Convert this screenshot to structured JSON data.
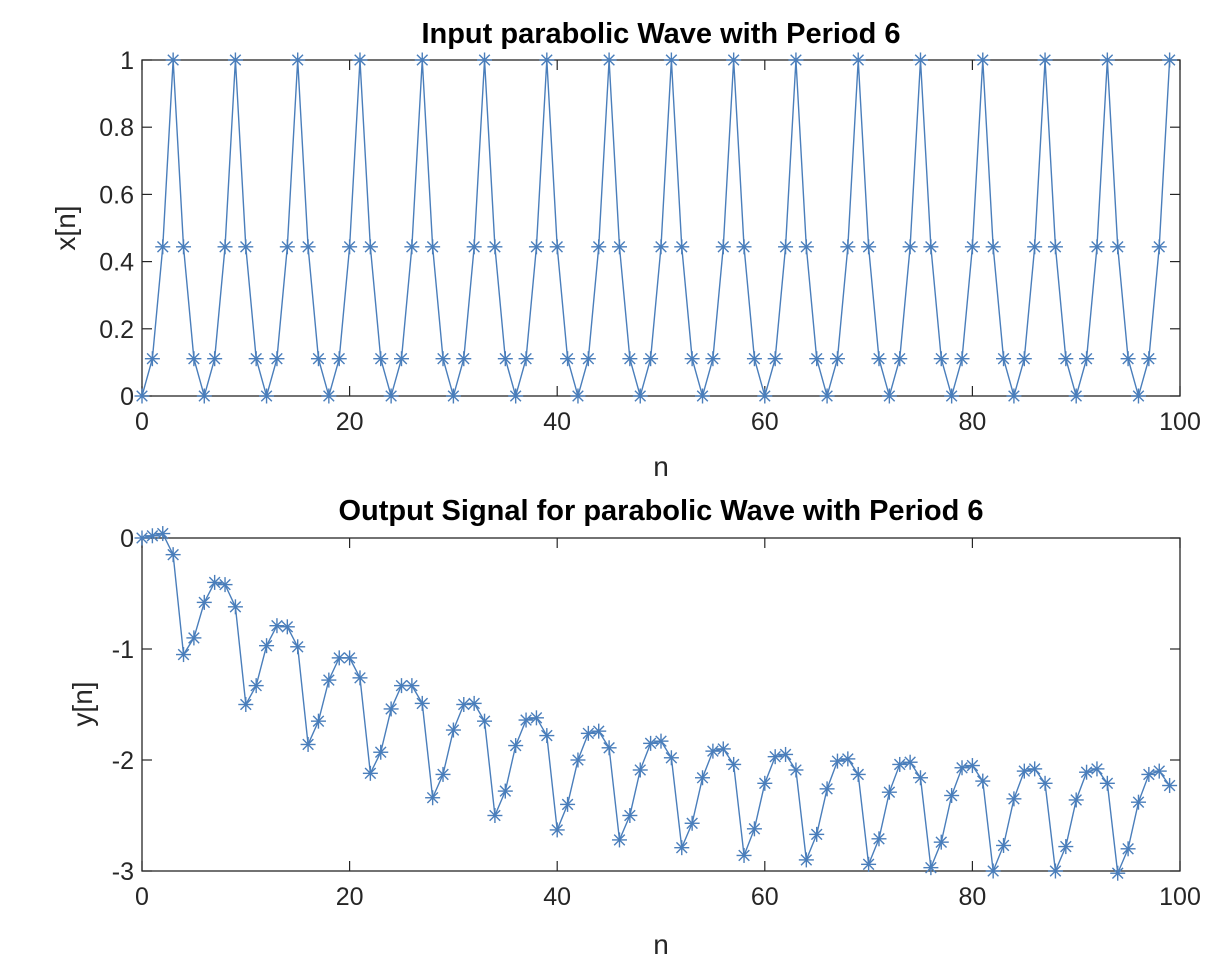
{
  "chart_data": [
    {
      "type": "line",
      "title": "Input parabolic Wave with Period 6",
      "xlabel": "n",
      "ylabel": "x[n]",
      "xlim": [
        0,
        100
      ],
      "ylim": [
        0,
        1
      ],
      "xticks": [
        0,
        20,
        40,
        60,
        80,
        100
      ],
      "xtick_labels": [
        "0",
        "20",
        "40",
        "60",
        "80",
        "100"
      ],
      "yticks": [
        0,
        0.2,
        0.4,
        0.6,
        0.8,
        1
      ],
      "ytick_labels": [
        "0",
        "0.2",
        "0.4",
        "0.6",
        "0.8",
        "1"
      ],
      "grid": false,
      "marker": "asterisk",
      "color": "#4a7ebb",
      "series": [
        {
          "x": [
            0,
            1,
            2,
            3,
            4,
            5,
            6,
            7,
            8,
            9,
            10,
            11,
            12,
            13,
            14,
            15,
            16,
            17,
            18,
            19,
            20,
            21,
            22,
            23,
            24,
            25,
            26,
            27,
            28,
            29,
            30,
            31,
            32,
            33,
            34,
            35,
            36,
            37,
            38,
            39,
            40,
            41,
            42,
            43,
            44,
            45,
            46,
            47,
            48,
            49,
            50,
            51,
            52,
            53,
            54,
            55,
            56,
            57,
            58,
            59,
            60,
            61,
            62,
            63,
            64,
            65,
            66,
            67,
            68,
            69,
            70,
            71,
            72,
            73,
            74,
            75,
            76,
            77,
            78,
            79,
            80,
            81,
            82,
            83,
            84,
            85,
            86,
            87,
            88,
            89,
            90,
            91,
            92,
            93,
            94,
            95,
            96,
            97,
            98,
            99
          ],
          "y": [
            0,
            0.111,
            0.444,
            1,
            0.444,
            0.111,
            0,
            0.111,
            0.444,
            1,
            0.444,
            0.111,
            0,
            0.111,
            0.444,
            1,
            0.444,
            0.111,
            0,
            0.111,
            0.444,
            1,
            0.444,
            0.111,
            0,
            0.111,
            0.444,
            1,
            0.444,
            0.111,
            0,
            0.111,
            0.444,
            1,
            0.444,
            0.111,
            0,
            0.111,
            0.444,
            1,
            0.444,
            0.111,
            0,
            0.111,
            0.444,
            1,
            0.444,
            0.111,
            0,
            0.111,
            0.444,
            1,
            0.444,
            0.111,
            0,
            0.111,
            0.444,
            1,
            0.444,
            0.111,
            0,
            0.111,
            0.444,
            1,
            0.444,
            0.111,
            0,
            0.111,
            0.444,
            1,
            0.444,
            0.111,
            0,
            0.111,
            0.444,
            1,
            0.444,
            0.111,
            0,
            0.111,
            0.444,
            1,
            0.444,
            0.111,
            0,
            0.111,
            0.444,
            1,
            0.444,
            0.111,
            0,
            0.111,
            0.444,
            1,
            0.444,
            0.111,
            0,
            0.111,
            0.444,
            1
          ]
        }
      ]
    },
    {
      "type": "line",
      "title": "Output Signal for parabolic Wave with Period 6",
      "xlabel": "n",
      "ylabel": "y[n]",
      "xlim": [
        0,
        100
      ],
      "ylim": [
        -3,
        0
      ],
      "xticks": [
        0,
        20,
        40,
        60,
        80,
        100
      ],
      "xtick_labels": [
        "0",
        "20",
        "40",
        "60",
        "80",
        "100"
      ],
      "yticks": [
        -3,
        -2,
        -1,
        0
      ],
      "ytick_labels": [
        "-3",
        "-2",
        "-1",
        "0"
      ],
      "grid": false,
      "marker": "asterisk",
      "color": "#4a7ebb",
      "series": [
        {
          "x": [
            0,
            1,
            2,
            3,
            4,
            5,
            6,
            7,
            8,
            9,
            10,
            11,
            12,
            13,
            14,
            15,
            16,
            17,
            18,
            19,
            20,
            21,
            22,
            23,
            24,
            25,
            26,
            27,
            28,
            29,
            30,
            31,
            32,
            33,
            34,
            35,
            36,
            37,
            38,
            39,
            40,
            41,
            42,
            43,
            44,
            45,
            46,
            47,
            48,
            49,
            50,
            51,
            52,
            53,
            54,
            55,
            56,
            57,
            58,
            59,
            60,
            61,
            62,
            63,
            64,
            65,
            66,
            67,
            68,
            69,
            70,
            71,
            72,
            73,
            74,
            75,
            76,
            77,
            78,
            79,
            80,
            81,
            82,
            83,
            84,
            85,
            86,
            87,
            88,
            89,
            90,
            91,
            92,
            93,
            94,
            95,
            96,
            97,
            98,
            99
          ],
          "y": [
            0,
            0.02,
            0.04,
            -0.15,
            -1.05,
            -0.9,
            -0.58,
            -0.4,
            -0.42,
            -0.62,
            -1.5,
            -1.33,
            -0.97,
            -0.79,
            -0.8,
            -0.98,
            -1.86,
            -1.65,
            -1.28,
            -1.08,
            -1.08,
            -1.26,
            -2.12,
            -1.93,
            -1.54,
            -1.33,
            -1.33,
            -1.49,
            -2.34,
            -2.13,
            -1.73,
            -1.5,
            -1.49,
            -1.65,
            -2.5,
            -2.28,
            -1.87,
            -1.64,
            -1.62,
            -1.78,
            -2.63,
            -2.4,
            -2.0,
            -1.76,
            -1.74,
            -1.89,
            -2.72,
            -2.5,
            -2.09,
            -1.85,
            -1.83,
            -1.98,
            -2.79,
            -2.57,
            -2.16,
            -1.92,
            -1.9,
            -2.04,
            -2.86,
            -2.62,
            -2.21,
            -1.97,
            -1.95,
            -2.09,
            -2.9,
            -2.67,
            -2.26,
            -2.01,
            -1.99,
            -2.13,
            -2.94,
            -2.71,
            -2.29,
            -2.04,
            -2.02,
            -2.16,
            -2.97,
            -2.74,
            -2.32,
            -2.07,
            -2.05,
            -2.19,
            -3.0,
            -2.77,
            -2.35,
            -2.1,
            -2.08,
            -2.21,
            -3.0,
            -2.78,
            -2.36,
            -2.11,
            -2.08,
            -2.21,
            -3.02,
            -2.8,
            -2.38,
            -2.13,
            -2.1,
            -2.23
          ]
        }
      ]
    }
  ]
}
